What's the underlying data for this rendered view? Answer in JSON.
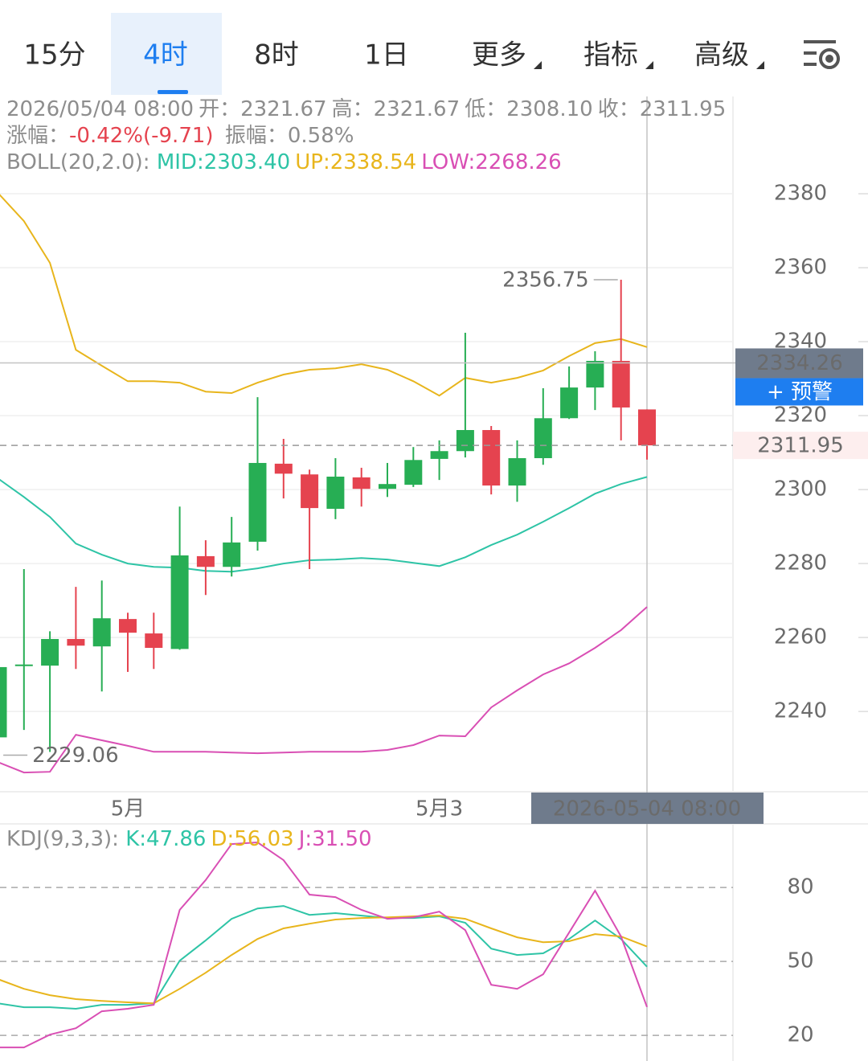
{
  "tabs": [
    "15分",
    "4时",
    "8时",
    "1日",
    "更多",
    "指标",
    "高级"
  ],
  "info": {
    "time": "2026/05/04 08:00",
    "ohlc": [
      {
        "label": "开：",
        "value": "2321.67"
      },
      {
        "label": "高：",
        "value": "2321.67"
      },
      {
        "label": "低：",
        "value": "2308.10"
      },
      {
        "label": "收：",
        "value": "2311.95"
      }
    ],
    "change_label": "涨幅：",
    "change": "-0.42%(-9.71)",
    "amplitude_label": "振幅：",
    "amplitude": "0.58%"
  },
  "chart_data": [
    {
      "type": "candlestick",
      "categories": [
        null,
        null,
        null,
        null,
        null,
        "5月",
        null,
        null,
        null,
        null,
        null,
        null,
        null,
        null,
        null,
        null,
        null,
        "5月3",
        null,
        null,
        null,
        null,
        null,
        null,
        null,
        null
      ],
      "crosshair_label": "2026-05-04 08:00",
      "open": [
        2233.0,
        2252.4,
        2252.4,
        2259.6,
        2257.6,
        2265.0,
        2261.1,
        2256.9,
        2282.0,
        2279.1,
        2285.9,
        2307.0,
        2304.1,
        2294.8,
        2303.3,
        2300.2,
        2301.3,
        2308.3,
        2310.4,
        2316.1,
        2301.1,
        2308.5,
        2319.3,
        2327.6,
        2334.8,
        2321.67
      ],
      "high": [
        2252.0,
        2278.5,
        2261.7,
        2273.7,
        2275.4,
        2266.7,
        2266.7,
        2295.4,
        2286.3,
        2292.6,
        2325.0,
        2313.7,
        2305.4,
        2308.5,
        2305.9,
        2307.2,
        2311.5,
        2313.3,
        2342.4,
        2317.2,
        2313.3,
        2327.4,
        2333.3,
        2337.4,
        2356.75,
        2321.67
      ],
      "low": [
        2233.0,
        2235.0,
        2229.06,
        2251.5,
        2245.4,
        2250.7,
        2251.5,
        2256.7,
        2271.5,
        2276.5,
        2283.5,
        2297.6,
        2278.5,
        2292.0,
        2295.4,
        2298.0,
        2300.7,
        2302.6,
        2308.7,
        2298.7,
        2296.7,
        2306.7,
        2319.1,
        2321.5,
        2313.3,
        2308.1
      ],
      "close": [
        2252.0,
        2252.7,
        2259.6,
        2257.8,
        2265.2,
        2261.3,
        2257.2,
        2282.2,
        2279.1,
        2285.7,
        2307.2,
        2304.3,
        2295.0,
        2303.5,
        2300.2,
        2301.5,
        2308.0,
        2310.4,
        2316.1,
        2301.1,
        2308.5,
        2319.3,
        2327.6,
        2334.8,
        2322.2,
        2311.95
      ],
      "up_color": "#27ae54",
      "down_color": "#e5434f",
      "indicator": "BOLL(20,2.0):",
      "series": [
        {
          "name": "MID:2303.40",
          "color": "#2ec4a6",
          "values": [
            2303.0,
            2298.0,
            2292.6,
            2285.4,
            2282.4,
            2280.0,
            2279.1,
            2278.9,
            2278.0,
            2277.8,
            2278.7,
            2280.0,
            2280.9,
            2281.1,
            2281.5,
            2281.1,
            2280.2,
            2279.3,
            2281.7,
            2285.0,
            2287.8,
            2291.3,
            2295.0,
            2298.9,
            2301.5,
            2303.4
          ]
        },
        {
          "name": "UP:2338.54",
          "color": "#e8b51c",
          "values": [
            2380.2,
            2372.6,
            2361.3,
            2337.8,
            2333.5,
            2329.3,
            2329.3,
            2328.9,
            2326.5,
            2326.1,
            2328.9,
            2331.1,
            2332.4,
            2332.8,
            2333.9,
            2332.4,
            2329.3,
            2325.4,
            2330.2,
            2328.9,
            2330.2,
            2332.2,
            2336.1,
            2339.6,
            2340.7,
            2338.54
          ]
        },
        {
          "name": "LOW:2268.26",
          "color": "#d94fb4",
          "values": [
            2226.3,
            2223.5,
            2223.7,
            2233.7,
            2232.2,
            2230.7,
            2229.1,
            2229.1,
            2229.1,
            2228.9,
            2228.7,
            2228.9,
            2229.1,
            2229.1,
            2229.1,
            2229.6,
            2230.9,
            2233.5,
            2233.3,
            2241.1,
            2245.7,
            2250.0,
            2253.0,
            2257.2,
            2262.0,
            2268.26
          ]
        }
      ],
      "ylim": [
        2218.3,
        2406.3
      ],
      "yticks": [
        2240,
        2260,
        2280,
        2300,
        2320,
        2340,
        2360,
        2380
      ],
      "grid": true,
      "cursor_price": 2334.26,
      "alert_button": "+ 预警"
    },
    {
      "type": "line",
      "indicator": "KDJ(9,3,3):",
      "series": [
        {
          "name": "K:47.86",
          "color": "#2ec4a6",
          "values": [
            33.0,
            31.4,
            31.4,
            30.8,
            32.4,
            32.4,
            33.0,
            50.3,
            58.5,
            67.3,
            71.5,
            72.5,
            68.9,
            69.6,
            68.6,
            67.6,
            67.6,
            68.3,
            65.7,
            55.2,
            52.6,
            53.3,
            59.1,
            66.6,
            59.1,
            47.86
          ]
        },
        {
          "name": "D:56.03",
          "color": "#e8b51c",
          "values": [
            42.8,
            38.9,
            36.3,
            34.7,
            34.0,
            33.4,
            33.0,
            38.9,
            45.4,
            52.6,
            59.1,
            63.4,
            65.3,
            67.0,
            67.6,
            67.9,
            68.3,
            68.6,
            67.3,
            63.4,
            59.8,
            57.8,
            58.2,
            61.1,
            60.1,
            56.03
          ]
        },
        {
          "name": "J:31.50",
          "color": "#d94fb4",
          "values": [
            15.1,
            15.1,
            20.3,
            22.9,
            29.8,
            30.8,
            32.4,
            70.9,
            83.0,
            97.6,
            98.3,
            91.1,
            77.1,
            76.1,
            70.9,
            67.3,
            67.9,
            70.2,
            62.7,
            40.5,
            38.9,
            44.8,
            61.7,
            78.7,
            60.1,
            31.5
          ]
        }
      ],
      "ylim": [
        9.6,
        105.8
      ],
      "yticks": [
        20,
        50,
        80
      ],
      "grid": true
    }
  ]
}
